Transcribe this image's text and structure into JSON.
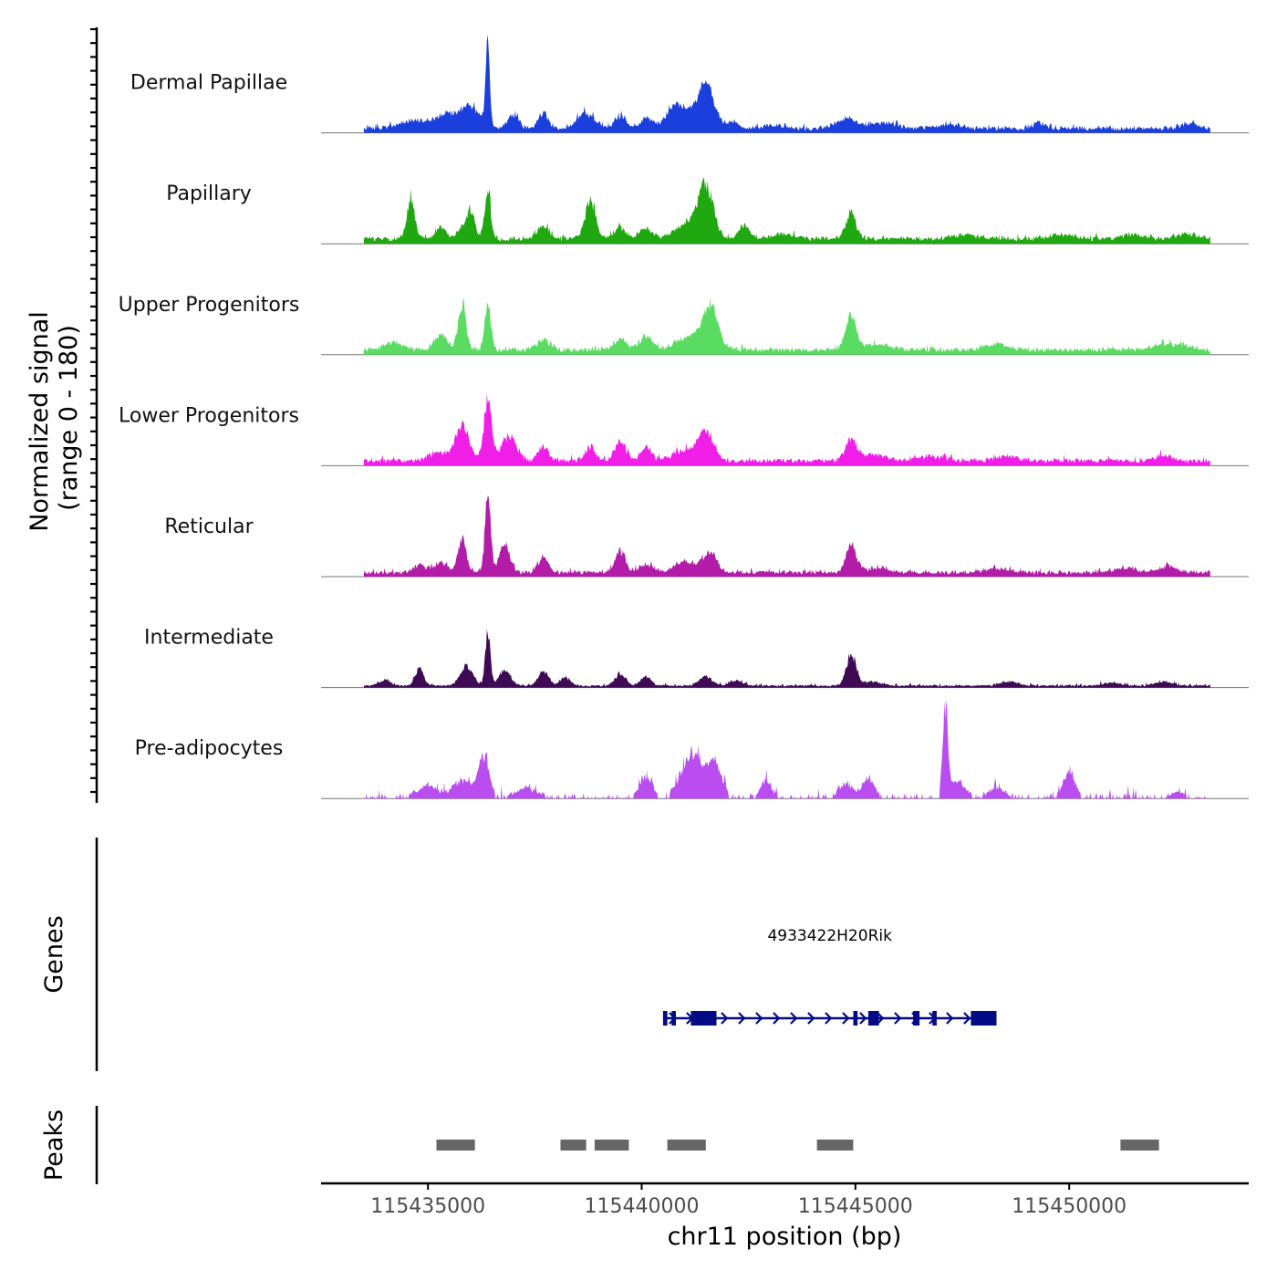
{
  "chart_data": {
    "type": "area",
    "title": "",
    "chromosome": "chr11",
    "xlabel": "chr11 position (bp)",
    "xlim": [
      115432500,
      115454200
    ],
    "data_span": [
      115433500,
      115453300
    ],
    "xticks": [
      115435000,
      115440000,
      115445000,
      115450000
    ],
    "xtick_labels": [
      "115435000",
      "115440000",
      "115445000",
      "115450000"
    ],
    "signal_axis_title_line1": "Normalized signal",
    "signal_axis_title_line2": "(range 0 - 180)",
    "ylim": [
      0,
      180
    ],
    "series": [
      {
        "name": "Dermal Papillae",
        "color": "#1a3fdc",
        "base": 8,
        "noise": 6,
        "peaks": [
          [
            115436400,
            165,
            45
          ],
          [
            115436000,
            40,
            250
          ],
          [
            115435400,
            25,
            300
          ],
          [
            115434600,
            15,
            300
          ],
          [
            115437000,
            28,
            120
          ],
          [
            115437700,
            30,
            120
          ],
          [
            115438700,
            30,
            200
          ],
          [
            115439500,
            25,
            120
          ],
          [
            115440100,
            18,
            120
          ],
          [
            115440800,
            22,
            150
          ],
          [
            115441500,
            75,
            180
          ],
          [
            115441000,
            30,
            400
          ],
          [
            115442100,
            12,
            150
          ],
          [
            115444800,
            18,
            250
          ],
          [
            115445700,
            10,
            300
          ],
          [
            115447200,
            6,
            300
          ],
          [
            115449300,
            12,
            120
          ],
          [
            115452800,
            10,
            150
          ],
          [
            115443100,
            6,
            200
          ]
        ]
      },
      {
        "name": "Papillary",
        "color": "#1fa80f",
        "base": 9,
        "noise": 6,
        "peaks": [
          [
            115434600,
            80,
            90
          ],
          [
            115436400,
            100,
            70
          ],
          [
            115436000,
            55,
            90
          ],
          [
            115435300,
            22,
            120
          ],
          [
            115435800,
            20,
            120
          ],
          [
            115437700,
            25,
            150
          ],
          [
            115438800,
            80,
            120
          ],
          [
            115439500,
            22,
            150
          ],
          [
            115440100,
            20,
            150
          ],
          [
            115441500,
            95,
            170
          ],
          [
            115441100,
            30,
            300
          ],
          [
            115442400,
            25,
            120
          ],
          [
            115444900,
            50,
            120
          ],
          [
            115443300,
            8,
            300
          ],
          [
            115447600,
            8,
            300
          ],
          [
            115449800,
            8,
            300
          ],
          [
            115451500,
            10,
            200
          ],
          [
            115452800,
            8,
            300
          ]
        ]
      },
      {
        "name": "Upper Progenitors",
        "color": "#5adc63",
        "base": 9,
        "noise": 6,
        "peaks": [
          [
            115436400,
            95,
            70
          ],
          [
            115435800,
            85,
            90
          ],
          [
            115435300,
            30,
            150
          ],
          [
            115434200,
            15,
            200
          ],
          [
            115437700,
            20,
            150
          ],
          [
            115439500,
            18,
            150
          ],
          [
            115440100,
            25,
            150
          ],
          [
            115441600,
            85,
            180
          ],
          [
            115441100,
            25,
            300
          ],
          [
            115444900,
            70,
            120
          ],
          [
            115445500,
            10,
            300
          ],
          [
            115448300,
            10,
            300
          ],
          [
            115452200,
            12,
            200
          ],
          [
            115452700,
            8,
            200
          ]
        ]
      },
      {
        "name": "Lower Progenitors",
        "color": "#f11ee8",
        "base": 9,
        "noise": 6,
        "peaks": [
          [
            115436400,
            120,
            90
          ],
          [
            115435800,
            70,
            170
          ],
          [
            115436900,
            50,
            170
          ],
          [
            115435200,
            15,
            200
          ],
          [
            115437700,
            30,
            120
          ],
          [
            115438800,
            25,
            120
          ],
          [
            115439500,
            42,
            120
          ],
          [
            115440100,
            30,
            120
          ],
          [
            115441500,
            55,
            170
          ],
          [
            115441000,
            20,
            300
          ],
          [
            115444900,
            38,
            130
          ],
          [
            115445400,
            12,
            300
          ],
          [
            115446800,
            10,
            300
          ],
          [
            115448500,
            8,
            300
          ],
          [
            115452200,
            12,
            200
          ]
        ]
      },
      {
        "name": "Reticular",
        "color": "#b21ca8",
        "base": 7,
        "noise": 6,
        "peaks": [
          [
            115436400,
            140,
            70
          ],
          [
            115435800,
            65,
            100
          ],
          [
            115436800,
            55,
            120
          ],
          [
            115435300,
            20,
            150
          ],
          [
            115434800,
            15,
            150
          ],
          [
            115437700,
            30,
            120
          ],
          [
            115439500,
            42,
            120
          ],
          [
            115440100,
            18,
            150
          ],
          [
            115441600,
            38,
            170
          ],
          [
            115441000,
            22,
            250
          ],
          [
            115444900,
            55,
            120
          ],
          [
            115445500,
            8,
            300
          ],
          [
            115448300,
            8,
            300
          ],
          [
            115451300,
            8,
            300
          ],
          [
            115452300,
            12,
            200
          ]
        ]
      },
      {
        "name": "Intermediate",
        "color": "#3d0a53",
        "base": 3,
        "noise": 4,
        "peaks": [
          [
            115436400,
            100,
            60
          ],
          [
            115435900,
            40,
            140
          ],
          [
            115436800,
            30,
            140
          ],
          [
            115434800,
            35,
            100
          ],
          [
            115434000,
            12,
            120
          ],
          [
            115437700,
            28,
            120
          ],
          [
            115438200,
            15,
            120
          ],
          [
            115439500,
            25,
            120
          ],
          [
            115440100,
            18,
            120
          ],
          [
            115441500,
            18,
            150
          ],
          [
            115442200,
            10,
            150
          ],
          [
            115444900,
            65,
            110
          ],
          [
            115445400,
            8,
            200
          ],
          [
            115448600,
            8,
            200
          ],
          [
            115451000,
            6,
            200
          ],
          [
            115452200,
            8,
            200
          ]
        ]
      },
      {
        "name": "Pre-adipocytes",
        "color": "#b94df0",
        "base": 3,
        "noise": 14,
        "gappy": true,
        "peaks": [
          [
            115436300,
            75,
            120
          ],
          [
            115435800,
            30,
            200
          ],
          [
            115435000,
            20,
            200
          ],
          [
            115437300,
            15,
            200
          ],
          [
            115440100,
            40,
            120
          ],
          [
            115441200,
            80,
            250
          ],
          [
            115441700,
            60,
            150
          ],
          [
            115442900,
            30,
            100
          ],
          [
            115444800,
            22,
            150
          ],
          [
            115445300,
            35,
            120
          ],
          [
            115447100,
            180,
            60
          ],
          [
            115447400,
            30,
            150
          ],
          [
            115450000,
            50,
            120
          ],
          [
            115448300,
            15,
            150
          ],
          [
            115452500,
            8,
            100
          ]
        ]
      }
    ],
    "genes": [
      {
        "name": "4933422H20Rik",
        "color": "#020a86",
        "strand": "+",
        "start": 115440500,
        "end": 115448300,
        "exons": [
          [
            115440500,
            115440600
          ],
          [
            115440700,
            115440800
          ],
          [
            115441150,
            115441750
          ],
          [
            115444950,
            115445050
          ],
          [
            115445300,
            115445550
          ],
          [
            115446350,
            115446500
          ],
          [
            115446800,
            115446900
          ],
          [
            115447700,
            115448300
          ]
        ]
      }
    ],
    "peaks": [
      {
        "start": 115435200,
        "end": 115436100
      },
      {
        "start": 115438100,
        "end": 115438700
      },
      {
        "start": 115438900,
        "end": 115439700
      },
      {
        "start": 115440600,
        "end": 115441500
      },
      {
        "start": 115444100,
        "end": 115444950
      },
      {
        "start": 115451200,
        "end": 115452100
      }
    ],
    "peak_color": "#666666",
    "genes_label": "Genes",
    "peaks_label": "Peaks"
  }
}
